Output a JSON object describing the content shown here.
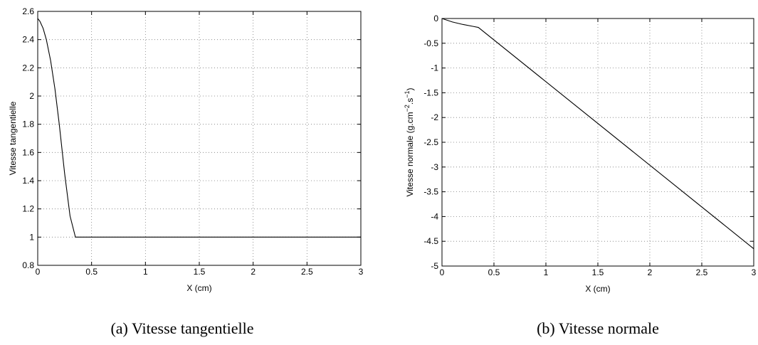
{
  "chart_data": [
    {
      "type": "line",
      "xlabel": "X (cm)",
      "ylabel": "Vitesse tangentielle",
      "xlim": [
        0,
        3
      ],
      "ylim": [
        0.8,
        2.6
      ],
      "xticks": [
        "0",
        "0.5",
        "1",
        "1.5",
        "2",
        "2.5",
        "3"
      ],
      "yticks": [
        "0.8",
        "1",
        "1.2",
        "1.4",
        "1.6",
        "1.8",
        "2",
        "2.2",
        "2.4",
        "2.6"
      ],
      "grid": true,
      "series": [
        {
          "x": [
            0,
            0.02,
            0.05,
            0.08,
            0.12,
            0.16,
            0.2,
            0.25,
            0.3,
            0.35,
            0.5,
            1,
            1.5,
            2,
            2.5,
            3
          ],
          "y": [
            2.55,
            2.53,
            2.48,
            2.4,
            2.25,
            2.05,
            1.8,
            1.45,
            1.15,
            1.0,
            1.0,
            1.0,
            1.0,
            1.0,
            1.0,
            1.0
          ]
        }
      ],
      "caption": "(a) Vitesse tangentielle"
    },
    {
      "type": "line",
      "xlabel": "X (cm)",
      "ylabel_parts": [
        "Vitesse normale (g.cm",
        "−2",
        ".s",
        "−1",
        ")"
      ],
      "xlim": [
        0,
        3
      ],
      "ylim": [
        -5,
        0
      ],
      "xticks": [
        "0",
        "0.5",
        "1",
        "1.5",
        "2",
        "2.5",
        "3"
      ],
      "yticks": [
        "0",
        "-0.5",
        "-1",
        "-1.5",
        "-2",
        "-2.5",
        "-3",
        "-3.5",
        "-4",
        "-4.5",
        "-5"
      ],
      "grid": true,
      "series": [
        {
          "x": [
            0,
            0.1,
            0.2,
            0.3,
            0.35,
            3
          ],
          "y": [
            0,
            -0.07,
            -0.12,
            -0.16,
            -0.18,
            -4.65
          ]
        }
      ],
      "caption": "(b) Vitesse normale"
    }
  ]
}
